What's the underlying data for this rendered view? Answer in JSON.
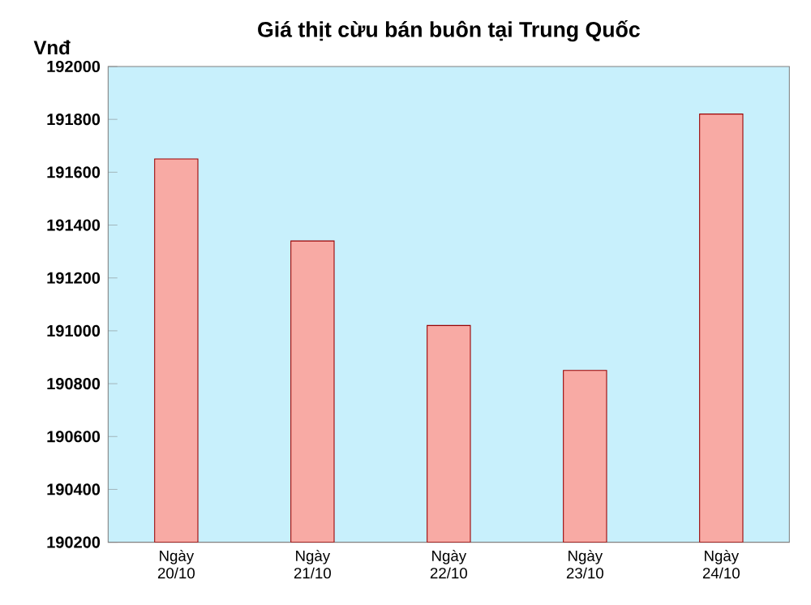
{
  "chart_data": {
    "type": "bar",
    "title": "Giá thịt cừu bán buôn tại Trung Quốc",
    "ylabel": "Vnđ",
    "categories": [
      "Ngày 20/10",
      "Ngày 21/10",
      "Ngày 22/10",
      "Ngày 23/10",
      "Ngày 24/10"
    ],
    "values": [
      191650,
      191340,
      191020,
      190850,
      191820
    ],
    "color": "#f8aaa4",
    "ylim": [
      190200,
      192000
    ],
    "yticks": [
      190200,
      190400,
      190600,
      190800,
      191000,
      191200,
      191400,
      191600,
      191800,
      192000
    ],
    "grid": false
  }
}
